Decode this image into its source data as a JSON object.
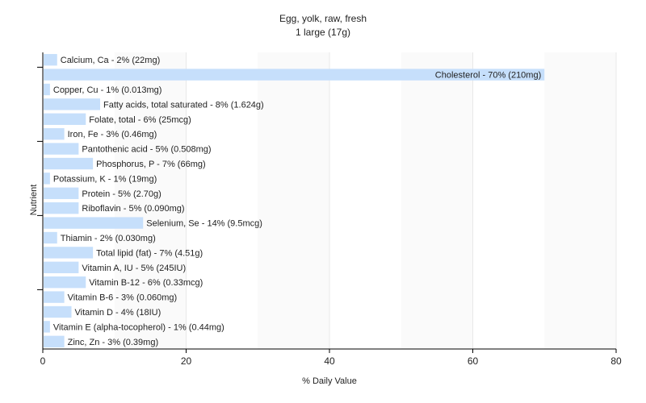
{
  "chart_data": {
    "type": "bar",
    "orientation": "horizontal",
    "title": "Egg, yolk, raw, fresh",
    "subtitle": "1 large (17g)",
    "xlabel": "% Daily Value",
    "ylabel": "Nutrient",
    "xlim": [
      0,
      80
    ],
    "xticks": [
      "0",
      "20",
      "40",
      "60",
      "80"
    ],
    "grid": true,
    "legend": "none",
    "bar_color": "#c6dffb",
    "categories": [
      "Calcium, Ca",
      "Cholesterol",
      "Copper, Cu",
      "Fatty acids, total saturated",
      "Folate, total",
      "Iron, Fe",
      "Pantothenic acid",
      "Phosphorus, P",
      "Potassium, K",
      "Protein",
      "Riboflavin",
      "Selenium, Se",
      "Thiamin",
      "Total lipid (fat)",
      "Vitamin A, IU",
      "Vitamin B-12",
      "Vitamin B-6",
      "Vitamin D",
      "Vitamin E (alpha-tocopherol)",
      "Zinc, Zn"
    ],
    "values": [
      2,
      70,
      1,
      8,
      6,
      3,
      5,
      7,
      1,
      5,
      5,
      14,
      2,
      7,
      5,
      6,
      3,
      4,
      1,
      3
    ],
    "labels": [
      "Calcium, Ca - 2% (22mg)",
      "Cholesterol - 70% (210mg)",
      "Copper, Cu - 1% (0.013mg)",
      "Fatty acids, total saturated - 8% (1.624g)",
      "Folate, total - 6% (25mcg)",
      "Iron, Fe - 3% (0.46mg)",
      "Pantothenic acid - 5% (0.508mg)",
      "Phosphorus, P - 7% (66mg)",
      "Potassium, K - 1% (19mg)",
      "Protein - 5% (2.70g)",
      "Riboflavin - 5% (0.090mg)",
      "Selenium, Se - 14% (9.5mcg)",
      "Thiamin - 2% (0.030mg)",
      "Total lipid (fat) - 7% (4.51g)",
      "Vitamin A, IU - 5% (245IU)",
      "Vitamin B-12 - 6% (0.33mcg)",
      "Vitamin B-6 - 3% (0.060mg)",
      "Vitamin D - 4% (18IU)",
      "Vitamin E (alpha-tocopherol) - 1% (0.44mg)",
      "Zinc, Zn - 3% (0.39mg)"
    ]
  }
}
